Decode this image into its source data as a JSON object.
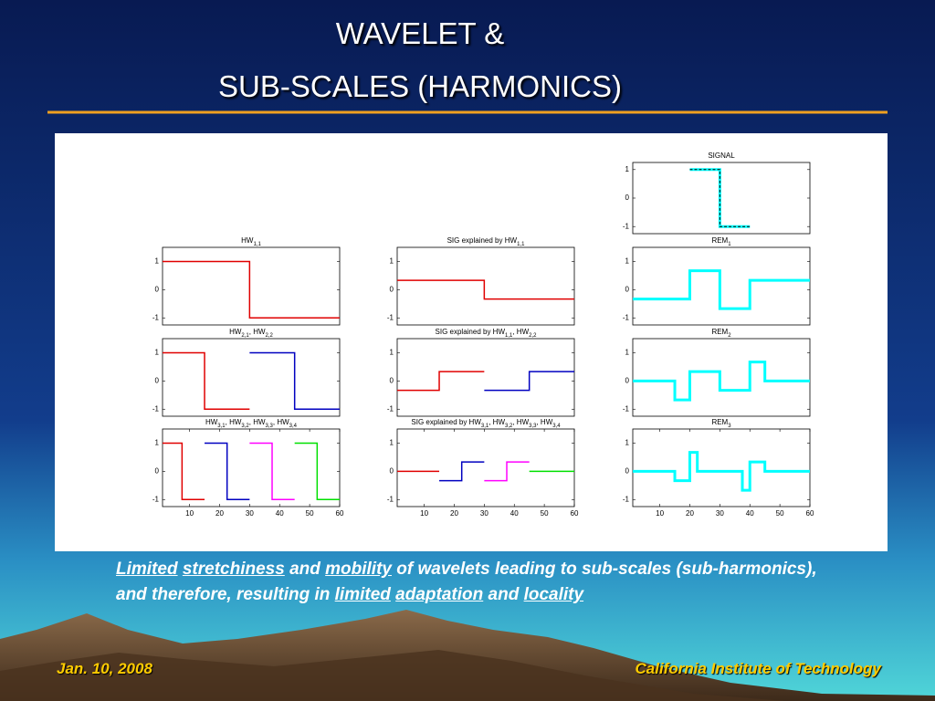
{
  "title": [
    "WAVELET &",
    "SUB-SCALES (HARMONICS)"
  ],
  "chart_data": [
    {
      "type": "line",
      "title": [
        "SIGNAL"
      ],
      "xlim": [
        1,
        60
      ],
      "ylim": [
        -1.25,
        1.25
      ],
      "yticks": [
        1,
        0,
        -1
      ],
      "series": [
        {
          "color": "#00ffff",
          "dash_color": "#000000",
          "x": [
            20,
            30,
            30,
            40
          ],
          "values": [
            1,
            1,
            -1,
            -1
          ]
        }
      ]
    },
    {
      "type": "line",
      "title": [
        "HW",
        "1,1"
      ],
      "xlim": [
        1,
        60
      ],
      "ylim": [
        -1.25,
        1.5
      ],
      "yticks": [
        1,
        0,
        -1
      ],
      "series": [
        {
          "color": "#e00000",
          "x": [
            1,
            30,
            30,
            60
          ],
          "values": [
            1,
            1,
            -1,
            -1
          ]
        }
      ]
    },
    {
      "type": "line",
      "title": [
        "SIG explained by HW",
        "1,1"
      ],
      "xlim": [
        1,
        60
      ],
      "ylim": [
        -1.25,
        1.5
      ],
      "yticks": [
        1,
        0,
        -1
      ],
      "series": [
        {
          "color": "#e00000",
          "x": [
            1,
            30,
            30,
            60
          ],
          "values": [
            0.33,
            0.33,
            -0.33,
            -0.33
          ]
        }
      ]
    },
    {
      "type": "line",
      "title": [
        "REM",
        "1"
      ],
      "xlim": [
        1,
        60
      ],
      "ylim": [
        -1.25,
        1.5
      ],
      "yticks": [
        1,
        0,
        -1
      ],
      "series": [
        {
          "color": "#00ffff",
          "x": [
            1,
            20,
            20,
            30,
            30,
            40,
            40,
            60
          ],
          "values": [
            -0.33,
            -0.33,
            0.67,
            0.67,
            -0.67,
            -0.67,
            0.33,
            0.33
          ]
        }
      ]
    },
    {
      "type": "line",
      "title": [
        "HW",
        "2,1",
        ", HW",
        "2,2"
      ],
      "xlim": [
        1,
        60
      ],
      "ylim": [
        -1.25,
        1.5
      ],
      "yticks": [
        1,
        0,
        -1
      ],
      "series": [
        {
          "color": "#e00000",
          "x": [
            1,
            15,
            15,
            30
          ],
          "values": [
            1,
            1,
            -1,
            -1
          ]
        },
        {
          "color": "#0000c0",
          "x": [
            30,
            45,
            45,
            60
          ],
          "values": [
            1,
            1,
            -1,
            -1
          ]
        }
      ]
    },
    {
      "type": "line",
      "title": [
        "SIG explained by HW",
        "1,1",
        ", HW",
        "2,2"
      ],
      "xlim": [
        1,
        60
      ],
      "ylim": [
        -1.25,
        1.5
      ],
      "yticks": [
        1,
        0,
        -1
      ],
      "series": [
        {
          "color": "#e00000",
          "x": [
            1,
            15,
            15,
            30
          ],
          "values": [
            -0.33,
            -0.33,
            0.33,
            0.33
          ]
        },
        {
          "color": "#0000c0",
          "x": [
            30,
            45,
            45,
            60
          ],
          "values": [
            -0.33,
            -0.33,
            0.33,
            0.33
          ]
        }
      ]
    },
    {
      "type": "line",
      "title": [
        "REM",
        "2"
      ],
      "xlim": [
        1,
        60
      ],
      "ylim": [
        -1.25,
        1.5
      ],
      "yticks": [
        1,
        0,
        -1
      ],
      "series": [
        {
          "color": "#00ffff",
          "x": [
            1,
            15,
            15,
            20,
            20,
            30,
            30,
            40,
            40,
            45,
            45,
            60
          ],
          "values": [
            0,
            0,
            -0.67,
            -0.67,
            0.33,
            0.33,
            -0.33,
            -0.33,
            0.67,
            0.67,
            0,
            0
          ]
        }
      ]
    },
    {
      "type": "line",
      "title": [
        "HW",
        "3,1",
        ", HW",
        "3,2",
        ", HW",
        "3,3",
        ", HW",
        "3,4"
      ],
      "xlim": [
        1,
        60
      ],
      "ylim": [
        -1.25,
        1.5
      ],
      "yticks": [
        1,
        0,
        -1
      ],
      "xticks": [
        10,
        20,
        30,
        40,
        50,
        60
      ],
      "series": [
        {
          "color": "#e00000",
          "x": [
            1,
            7.5,
            7.5,
            15
          ],
          "values": [
            1,
            1,
            -1,
            -1
          ]
        },
        {
          "color": "#0000c0",
          "x": [
            15,
            22.5,
            22.5,
            30
          ],
          "values": [
            1,
            1,
            -1,
            -1
          ]
        },
        {
          "color": "#ff00ff",
          "x": [
            30,
            37.5,
            37.5,
            45
          ],
          "values": [
            1,
            1,
            -1,
            -1
          ]
        },
        {
          "color": "#00e000",
          "x": [
            45,
            52.5,
            52.5,
            60
          ],
          "values": [
            1,
            1,
            -1,
            -1
          ]
        }
      ]
    },
    {
      "type": "line",
      "title": [
        "SIG explained by HW",
        "3,1",
        ", HW",
        "3,2",
        ", HW",
        "3,3",
        ", HW",
        "3,4"
      ],
      "xlim": [
        1,
        60
      ],
      "ylim": [
        -1.25,
        1.5
      ],
      "yticks": [
        1,
        0,
        -1
      ],
      "xticks": [
        10,
        20,
        30,
        40,
        50,
        60
      ],
      "series": [
        {
          "color": "#e00000",
          "x": [
            1,
            15
          ],
          "values": [
            0,
            0
          ]
        },
        {
          "color": "#0000c0",
          "x": [
            15,
            22.5,
            22.5,
            30
          ],
          "values": [
            -0.33,
            -0.33,
            0.33,
            0.33
          ]
        },
        {
          "color": "#ff00ff",
          "x": [
            30,
            37.5,
            37.5,
            45
          ],
          "values": [
            -0.33,
            -0.33,
            0.33,
            0.33
          ]
        },
        {
          "color": "#00e000",
          "x": [
            45,
            60
          ],
          "values": [
            0,
            0
          ]
        }
      ]
    },
    {
      "type": "line",
      "title": [
        "REM",
        "3"
      ],
      "xlim": [
        1,
        60
      ],
      "ylim": [
        -1.25,
        1.5
      ],
      "yticks": [
        1,
        0,
        -1
      ],
      "xticks": [
        10,
        20,
        30,
        40,
        50,
        60
      ],
      "series": [
        {
          "color": "#00ffff",
          "x": [
            1,
            15,
            15,
            20,
            20,
            22.5,
            22.5,
            37.5,
            37.5,
            40,
            40,
            45,
            45,
            60
          ],
          "values": [
            0,
            0,
            -0.33,
            -0.33,
            0.67,
            0.67,
            0,
            0,
            -0.67,
            -0.67,
            0.33,
            0.33,
            0,
            0
          ]
        }
      ]
    }
  ],
  "caption": [
    {
      "text": "Limited",
      "underline": true
    },
    {
      "text": "stretchiness",
      "underline": true
    },
    {
      "text": "and",
      "underline": false
    },
    {
      "text": "mobility",
      "underline": true
    },
    {
      "text": "of wavelets leading to sub-scales (sub-harmonics), and therefore, resulting in",
      "underline": false
    },
    {
      "text": "limited",
      "underline": true
    },
    {
      "text": "adaptation",
      "underline": true
    },
    {
      "text": "and",
      "underline": false
    },
    {
      "text": "locality",
      "underline": true
    }
  ],
  "footer": {
    "date": "Jan. 10, 2008",
    "institution": "California Institute of Technology"
  }
}
